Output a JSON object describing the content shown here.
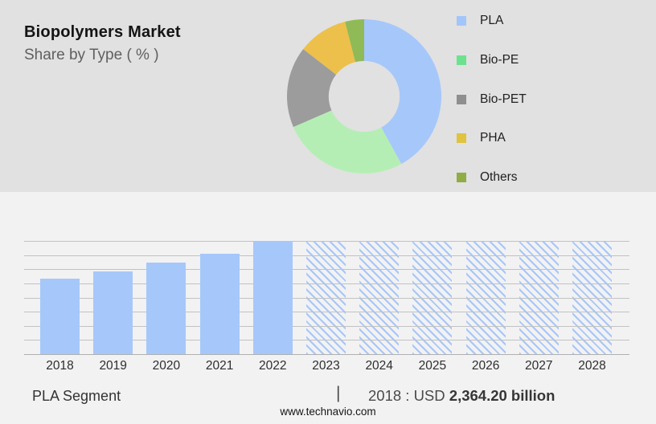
{
  "header": {
    "title": "Biopolymers Market",
    "subtitle": "Share by Type ( % )"
  },
  "chart_data": [
    {
      "type": "pie",
      "donut": true,
      "title": "Biopolymers Market Share by Type ( % )",
      "labels": [
        "PLA",
        "Bio-PE",
        "Bio-PET",
        "PHA",
        "Others"
      ],
      "values": [
        42,
        26.5,
        17,
        10.5,
        4
      ],
      "slice_colors": [
        "#a6c7fa",
        "#b5eeb5",
        "#9c9c9c",
        "#ecc04b",
        "#90ba56"
      ],
      "legend_colors": [
        "#a3c6fa",
        "#6ce28f",
        "#8f8f8f",
        "#e0c33f",
        "#8fad44"
      ],
      "legend_position": "right",
      "hole_ratio": 0.46
    },
    {
      "type": "bar",
      "categories": [
        "2018",
        "2019",
        "2020",
        "2021",
        "2022",
        "2023",
        "2024",
        "2025",
        "2026",
        "2027",
        "2028"
      ],
      "values_relative": [
        0.67,
        0.73,
        0.81,
        0.89,
        1.0,
        1.0,
        1.0,
        1.0,
        1.0,
        1.0,
        1.0
      ],
      "forecast_start_index": 5,
      "bar_color": "#a6c7fa",
      "forecast_style": "diagonal-hatch",
      "gridlines": 8,
      "y_axis_labels_shown": false,
      "anchor": {
        "year": "2018",
        "value_text": "USD 2,364.20 billion"
      }
    }
  ],
  "footer": {
    "segment_label": "PLA Segment",
    "divider": "|",
    "value_prefix": "2018 : USD ",
    "value_bold": "2,364.20 billion",
    "website": "www.technavio.com"
  }
}
